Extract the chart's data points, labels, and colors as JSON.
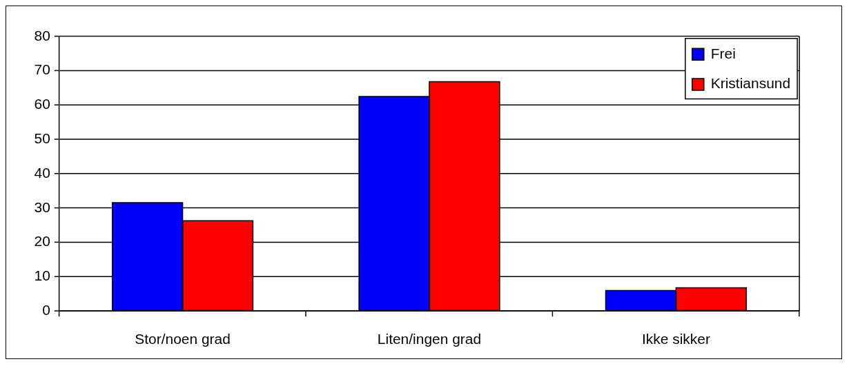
{
  "chart_data": {
    "type": "bar",
    "categories": [
      "Stor/noen grad",
      "Liten/ingen grad",
      "Ikke sikker"
    ],
    "series": [
      {
        "name": "Frei",
        "color": "#0000ff",
        "values": [
          31.6,
          62.5,
          6.0
        ]
      },
      {
        "name": "Kristiansund",
        "color": "#ff0000",
        "values": [
          26.3,
          66.8,
          6.8
        ]
      }
    ],
    "ylim": [
      0,
      80
    ],
    "yticks": [
      0,
      10,
      20,
      30,
      40,
      50,
      60,
      70,
      80
    ],
    "grid": "y",
    "legend": "top right"
  }
}
